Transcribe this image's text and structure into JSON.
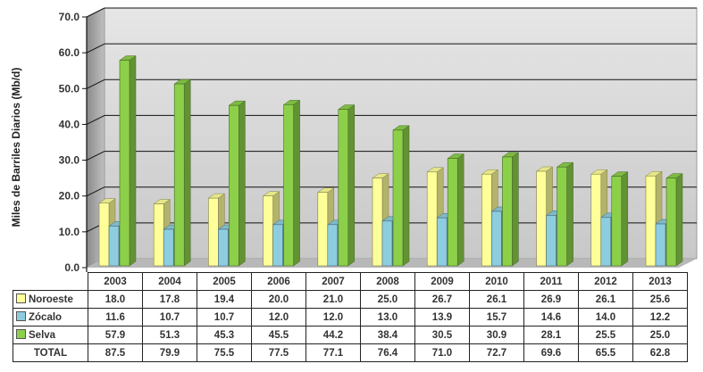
{
  "chart_data": {
    "type": "bar",
    "title": "",
    "xlabel": "",
    "ylabel": "Miles de Barriles Diarios (Mb/d)",
    "ylim": [
      0,
      70
    ],
    "yticks": [
      "0.0",
      "10.0",
      "20.0",
      "30.0",
      "40.0",
      "50.0",
      "60.0",
      "70.0"
    ],
    "categories": [
      "2003",
      "2004",
      "2005",
      "2006",
      "2007",
      "2008",
      "2009",
      "2010",
      "2011",
      "2012",
      "2013"
    ],
    "series": [
      {
        "name": "Noroeste",
        "color": "#ffff99",
        "values": [
          18.0,
          17.8,
          19.4,
          20.0,
          21.0,
          25.0,
          26.7,
          26.1,
          26.9,
          26.1,
          25.6
        ],
        "labels": [
          "18.0",
          "17.8",
          "19.4",
          "20.0",
          "21.0",
          "25.0",
          "26.7",
          "26.1",
          "26.9",
          "26.1",
          "25.6"
        ]
      },
      {
        "name": "Zócalo",
        "color": "#8ecde0",
        "values": [
          11.6,
          10.7,
          10.7,
          12.0,
          12.0,
          13.0,
          13.9,
          15.7,
          14.6,
          14.0,
          12.2
        ],
        "labels": [
          "11.6",
          "10.7",
          "10.7",
          "12.0",
          "12.0",
          "13.0",
          "13.9",
          "15.7",
          "14.6",
          "14.0",
          "12.2"
        ]
      },
      {
        "name": "Selva",
        "color": "#8cd04a",
        "values": [
          57.9,
          51.3,
          45.3,
          45.5,
          44.2,
          38.4,
          30.5,
          30.9,
          28.1,
          25.5,
          25.0
        ],
        "labels": [
          "57.9",
          "51.3",
          "45.3",
          "45.5",
          "44.2",
          "38.4",
          "30.5",
          "30.9",
          "28.1",
          "25.5",
          "25.0"
        ]
      }
    ],
    "total": {
      "name": "TOTAL",
      "values": [
        87.5,
        79.9,
        75.5,
        77.5,
        77.1,
        76.4,
        71.0,
        72.7,
        69.6,
        65.5,
        62.8
      ],
      "labels": [
        "87.5",
        "79.9",
        "75.5",
        "77.5",
        "77.1",
        "76.4",
        "71.0",
        "72.7",
        "69.6",
        "65.5",
        "62.8"
      ]
    },
    "grid": true,
    "legend": "in-data-table"
  }
}
